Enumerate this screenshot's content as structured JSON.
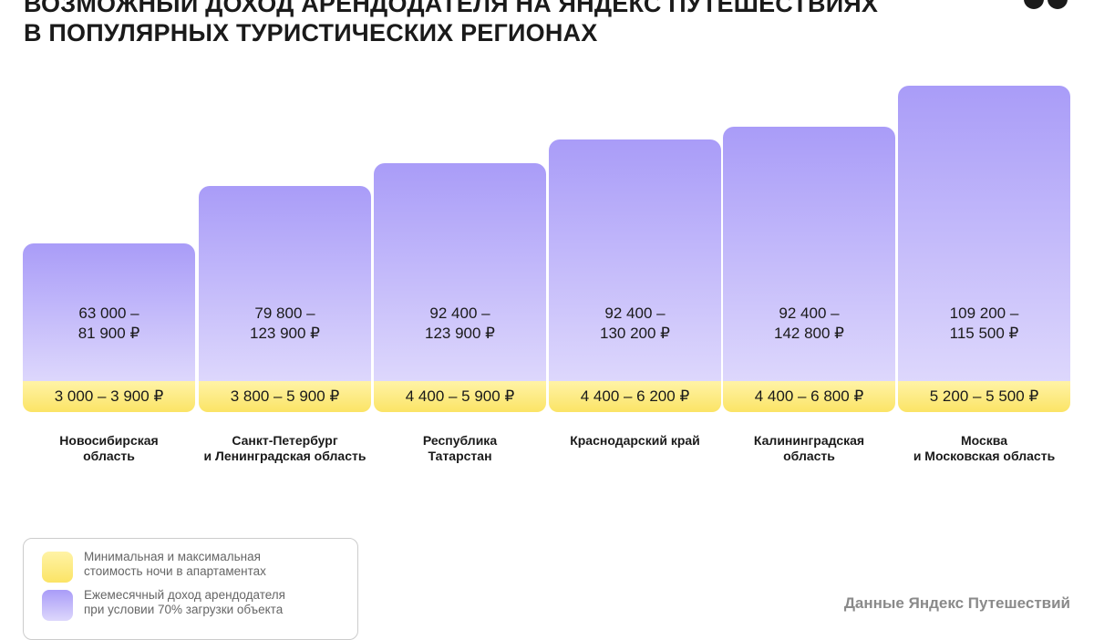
{
  "header": {
    "title": [
      "ВОЗМОЖНЫЙ ДОХОД АРЕНДОДАТЕЛЯ НА ЯНДЕКС ПУТЕШЕСТВИЯХ",
      "В ПОПУЛЯРНЫХ ТУРИСТИЧЕСКИХ РЕГИОНАХ"
    ]
  },
  "columns": [
    {
      "income": [
        "63 000 –",
        "81 900 ₽"
      ],
      "night_price": "3 000 – 3 900 ₽",
      "region": [
        "Новосибирская",
        "область"
      ]
    },
    {
      "income": [
        "79 800 –",
        "123 900 ₽"
      ],
      "night_price": "3 800 – 5 900 ₽",
      "region": [
        "Санкт-Петербург",
        "и Ленинградская область"
      ]
    },
    {
      "income": [
        "92 400 –",
        "123 900 ₽"
      ],
      "night_price": "4 400 – 5 900 ₽",
      "region": [
        "Республика",
        "Татарстан"
      ]
    },
    {
      "income": [
        "92 400 –",
        "130 200 ₽"
      ],
      "night_price": "4 400 – 6 200 ₽",
      "region": [
        "Краснодарский край"
      ]
    },
    {
      "income": [
        "92 400 –",
        "142 800 ₽"
      ],
      "night_price": "4 400 – 6 800 ₽",
      "region": [
        "Калининградская",
        "область"
      ]
    },
    {
      "income": [
        "109 200 –",
        "115 500 ₽"
      ],
      "night_price": "5 200 – 5 500 ₽",
      "region": [
        "Москва",
        "и Московская область"
      ]
    }
  ],
  "legend": [
    {
      "text": [
        "Минимальная и максимальная",
        "стоимость ночи в апартаментах"
      ]
    },
    {
      "text": [
        "Ежемесячный доход арендодателя",
        "при условии 70% загрузки объекта"
      ]
    }
  ],
  "source": "Данные Яндекс Путешествий"
}
